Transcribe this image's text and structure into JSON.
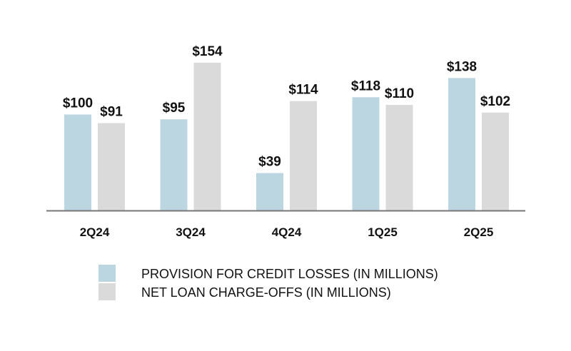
{
  "chart_data": {
    "type": "bar",
    "title": "",
    "xlabel": "",
    "ylabel": "",
    "ylim": [
      0,
      160
    ],
    "grid": false,
    "legend_position": "bottom",
    "categories": [
      "2Q24",
      "3Q24",
      "4Q24",
      "1Q25",
      "2Q25"
    ],
    "series": [
      {
        "name": "PROVISION FOR CREDIT LOSSES (IN MILLIONS)",
        "color": "#bcd6e1",
        "values": [
          100,
          95,
          39,
          118,
          138
        ],
        "labels": [
          "$100",
          "$95",
          "$39",
          "$118",
          "$138"
        ]
      },
      {
        "name": "NET LOAN CHARGE-OFFS (IN MILLIONS)",
        "color": "#dadada",
        "values": [
          91,
          154,
          114,
          110,
          102
        ],
        "labels": [
          "$91",
          "$154",
          "$114",
          "$110",
          "$102"
        ]
      }
    ],
    "axis_color": "#777777"
  }
}
